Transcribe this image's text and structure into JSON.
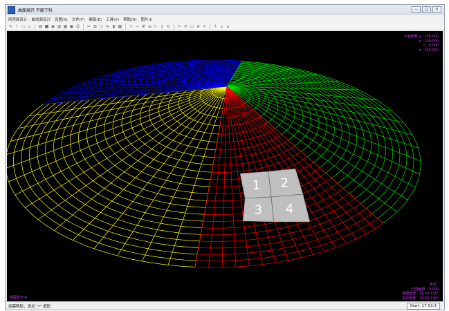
{
  "window": {
    "title": "曲面展开 平面下料",
    "controls": [
      "−",
      "□",
      "×"
    ]
  },
  "menu": {
    "items": [
      "网壳面设计",
      "曲线面设计",
      "设置(S)",
      "文件(F)",
      "编辑(E)",
      "工具(V)",
      "帮助(H)",
      "图片(I)"
    ]
  },
  "toolbar": {
    "icons": [
      "pointer-icon",
      "pen-icon",
      "circle-icon",
      "save-icon",
      "layer-icon",
      "fill-icon",
      "view-icon",
      "page-icon",
      "image-icon",
      "disk-icon",
      "print-icon",
      "cut-icon",
      "copy-icon",
      "paste-icon",
      "mirror-icon",
      "bar-icon",
      "grid-icon",
      "zoom-in-icon",
      "zoom-out-icon",
      "hash-icon",
      "align-icon",
      "ruler-icon",
      "square-icon",
      "rotate-icon",
      "select-icon",
      "brush-icon",
      "trash-icon",
      "arrow-icon",
      "close-icon",
      "up-icon",
      "down-icon",
      "home-icon"
    ],
    "glyphs": [
      "✎",
      "⌇",
      "○",
      "▭",
      "▤",
      "■",
      "◉",
      "▥",
      "▦",
      "▣",
      "⎙",
      "✂",
      "⧉",
      "▢",
      "⇋",
      "▮",
      "▩",
      "+",
      "−",
      "#",
      "≡",
      "⊢",
      "▯",
      "↻",
      "↖",
      "✐",
      "▭",
      "➤",
      "×",
      "⇡",
      "⇣",
      "⌂"
    ]
  },
  "viewport": {
    "panel_labels": [
      "1",
      "2",
      "3",
      "4"
    ],
    "params": [
      "小面参数  a : 100.000",
      "b : 100.000",
      "c : 0.000",
      "e : 100.000"
    ],
    "status_lines": [
      "状态 :",
      "已选面数 : 0.000",
      "视图角度 : 16.55 130°",
      "实际角度 : 16.55 130°"
    ],
    "left_note": "视图显示中",
    "colors": {
      "background": "#000000",
      "quadrant_yellow": "#ffff00",
      "quadrant_red": "#ff0000",
      "quadrant_green": "#00dd00",
      "quadrant_blue": "#0000ff",
      "panel_fill": "#bfbfbf",
      "hud_text": "#cc33ff"
    }
  },
  "statusbar": {
    "help": "如需帮助，请点 \"?\" 按钮",
    "start": "Start: 17:53:3"
  }
}
